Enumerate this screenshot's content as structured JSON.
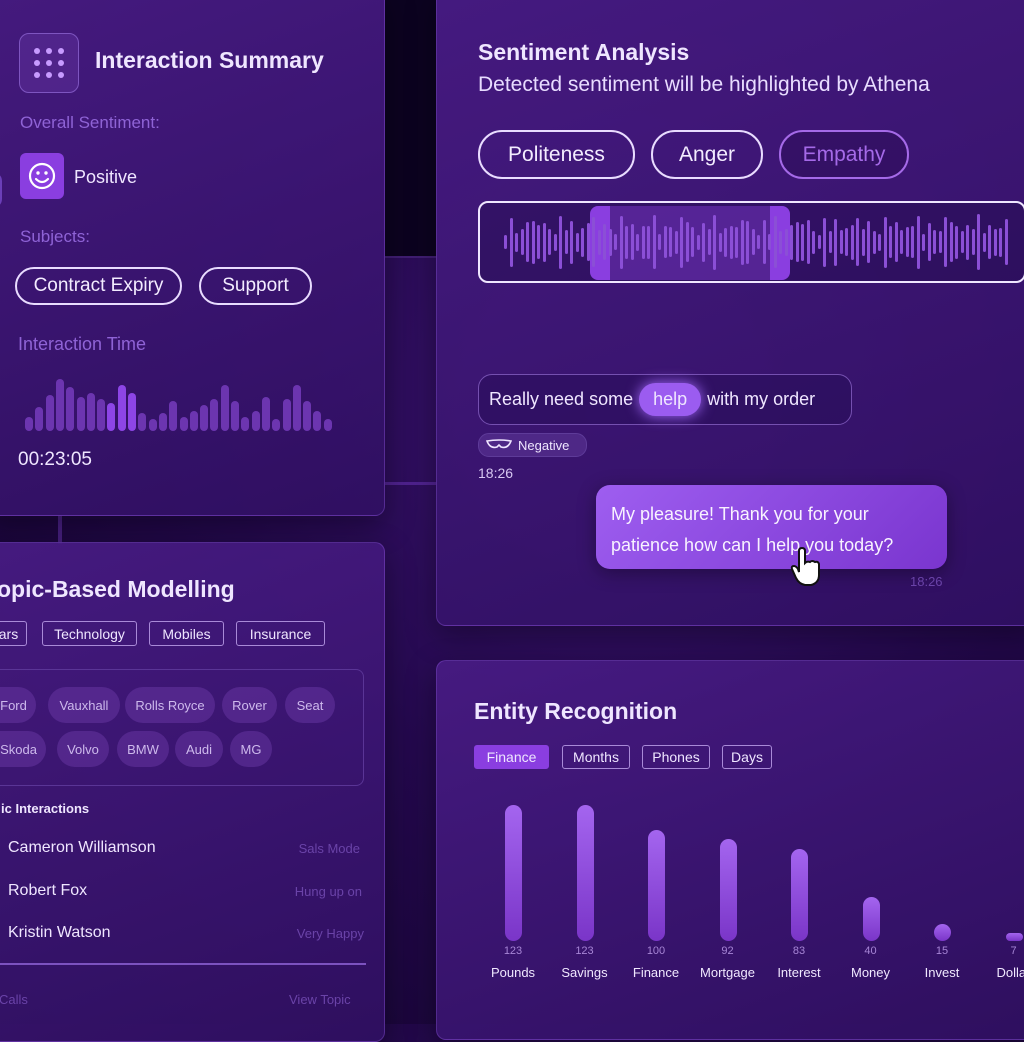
{
  "summary": {
    "title": "Interaction Summary",
    "overall_label": "Overall Sentiment:",
    "sentiment": "Positive",
    "subjects_label": "Subjects:",
    "subjects": [
      "Contract Expiry",
      "Support"
    ],
    "time_label": "Interaction Time",
    "time": "00:23:05"
  },
  "sentiment_panel": {
    "title": "Sentiment Analysis",
    "subtitle": "Detected sentiment will be highlighted by Athena",
    "filters": [
      "Politeness",
      "Anger",
      "Empathy"
    ],
    "message_before": "Really need some",
    "message_highlight": "help",
    "message_after": "with my order",
    "tag": "Negative",
    "time1": "18:26",
    "reply": "My pleasure! Thank you for your patience how can I help you today?",
    "time2": "18:26"
  },
  "topic_panel": {
    "title": "opic-Based Modelling",
    "tabs": [
      "ars",
      "Technology",
      "Mobiles",
      "Insurance"
    ],
    "chips_row1": [
      "Ford",
      "Vauxhall",
      "Rolls Royce",
      "Rover",
      "Seat"
    ],
    "chips_row2": [
      "Skoda",
      "Volvo",
      "BMW",
      "Audi",
      "MG"
    ],
    "interactions_label": "ic Interactions",
    "interactions": [
      {
        "name": "Cameron Williamson",
        "status": "Sals Mode"
      },
      {
        "name": "Robert Fox",
        "status": "Hung up on"
      },
      {
        "name": "Kristin Watson",
        "status": "Very Happy"
      }
    ],
    "footer_left": "Calls",
    "footer_right": "View Topic"
  },
  "entity_panel": {
    "title": "Entity Recognition",
    "tabs": [
      "Finance",
      "Months",
      "Phones",
      "Days"
    ]
  },
  "chart_data": {
    "type": "bar",
    "categories": [
      "Pounds",
      "Savings",
      "Finance",
      "Mortgage",
      "Interest",
      "Money",
      "Invest",
      "Dollar"
    ],
    "values": [
      123,
      123,
      100,
      92,
      83,
      40,
      15,
      7
    ]
  },
  "colors": {
    "accent": "#8a3ee0",
    "panel": "#3a1370",
    "highlight": "#9b5cf0"
  }
}
